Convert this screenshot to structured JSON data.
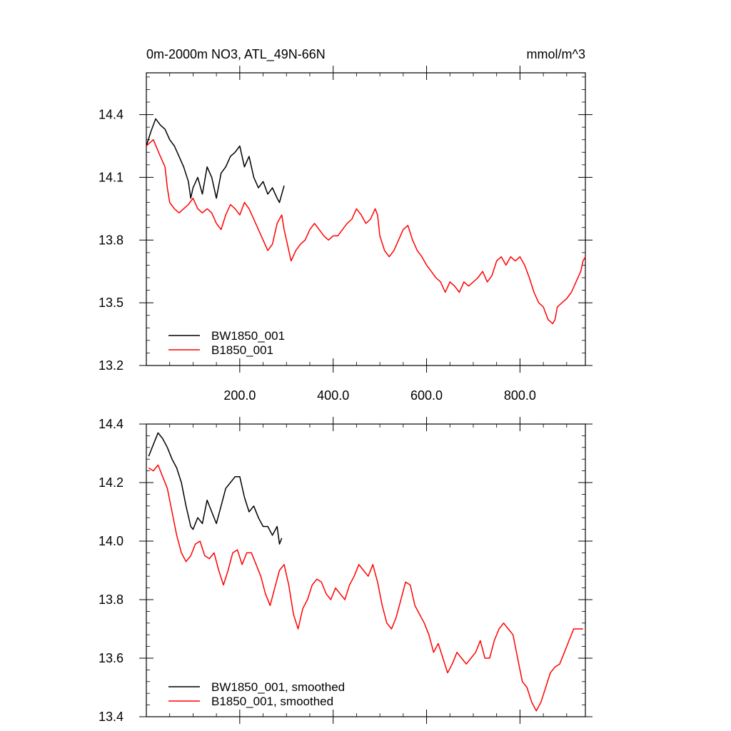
{
  "chart_data": [
    {
      "type": "line",
      "title": "0m-2000m NO3, ATL_49N-66N",
      "units": "mmol/m^3",
      "xlabel": "",
      "ylabel": "",
      "xlim": [
        0,
        940
      ],
      "ylim": [
        13.2,
        14.6
      ],
      "x_ticks": [
        200,
        400,
        600,
        800
      ],
      "x_tick_labels": [
        "200.0",
        "400.0",
        "600.0",
        "800.0"
      ],
      "y_ticks": [
        13.2,
        13.5,
        13.8,
        14.1,
        14.4
      ],
      "y_tick_labels": [
        "13.2",
        "13.5",
        "13.8",
        "14.1",
        "14.4"
      ],
      "legend_position": "bottom-left",
      "series": [
        {
          "name": "BW1850_001",
          "color": "#000000",
          "x": [
            0,
            10,
            20,
            30,
            40,
            50,
            60,
            70,
            80,
            90,
            95,
            100,
            110,
            120,
            130,
            140,
            150,
            160,
            170,
            180,
            190,
            200,
            210,
            220,
            230,
            240,
            250,
            260,
            270,
            280,
            285,
            290,
            295
          ],
          "y": [
            14.25,
            14.32,
            14.38,
            14.35,
            14.33,
            14.28,
            14.25,
            14.2,
            14.15,
            14.08,
            14.0,
            14.05,
            14.1,
            14.02,
            14.15,
            14.1,
            14.0,
            14.12,
            14.15,
            14.2,
            14.22,
            14.25,
            14.15,
            14.2,
            14.1,
            14.05,
            14.08,
            14.02,
            14.05,
            14.0,
            13.98,
            14.02,
            14.06
          ]
        },
        {
          "name": "B1850_001",
          "color": "#ff0000",
          "x": [
            0,
            15,
            30,
            40,
            45,
            50,
            60,
            70,
            80,
            90,
            100,
            110,
            120,
            130,
            140,
            150,
            160,
            170,
            180,
            190,
            200,
            210,
            220,
            230,
            240,
            250,
            260,
            270,
            280,
            290,
            295,
            300,
            310,
            320,
            330,
            340,
            350,
            360,
            370,
            380,
            390,
            400,
            410,
            420,
            430,
            440,
            450,
            460,
            470,
            480,
            490,
            495,
            500,
            510,
            520,
            530,
            540,
            550,
            560,
            570,
            580,
            590,
            600,
            610,
            620,
            630,
            640,
            650,
            660,
            670,
            680,
            690,
            700,
            710,
            720,
            730,
            740,
            750,
            760,
            770,
            780,
            790,
            800,
            810,
            820,
            830,
            840,
            850,
            860,
            870,
            875,
            880,
            890,
            900,
            910,
            920,
            930,
            935,
            940
          ],
          "y": [
            14.25,
            14.28,
            14.2,
            14.15,
            14.05,
            13.98,
            13.95,
            13.93,
            13.95,
            13.97,
            14.0,
            13.95,
            13.93,
            13.95,
            13.93,
            13.88,
            13.85,
            13.92,
            13.97,
            13.95,
            13.92,
            13.98,
            13.95,
            13.9,
            13.85,
            13.8,
            13.75,
            13.78,
            13.88,
            13.92,
            13.85,
            13.8,
            13.7,
            13.75,
            13.78,
            13.8,
            13.85,
            13.88,
            13.85,
            13.82,
            13.8,
            13.82,
            13.82,
            13.85,
            13.88,
            13.9,
            13.95,
            13.92,
            13.88,
            13.9,
            13.95,
            13.92,
            13.82,
            13.75,
            13.72,
            13.75,
            13.8,
            13.85,
            13.87,
            13.8,
            13.75,
            13.72,
            13.68,
            13.65,
            13.62,
            13.6,
            13.55,
            13.6,
            13.58,
            13.55,
            13.6,
            13.58,
            13.6,
            13.62,
            13.65,
            13.6,
            13.63,
            13.7,
            13.72,
            13.68,
            13.72,
            13.7,
            13.72,
            13.68,
            13.62,
            13.55,
            13.5,
            13.48,
            13.42,
            13.4,
            13.42,
            13.48,
            13.5,
            13.52,
            13.55,
            13.6,
            13.65,
            13.7,
            13.72
          ]
        }
      ]
    },
    {
      "type": "line",
      "title": "",
      "xlabel": "",
      "ylabel": "",
      "xlim": [
        0,
        940
      ],
      "ylim": [
        13.4,
        14.4
      ],
      "x_ticks": [
        200,
        400,
        600,
        800
      ],
      "x_tick_labels": [
        "",
        "",
        "",
        ""
      ],
      "y_ticks": [
        13.4,
        13.6,
        13.8,
        14.0,
        14.2,
        14.4
      ],
      "y_tick_labels": [
        "13.4",
        "13.6",
        "13.8",
        "14.0",
        "14.2",
        "14.4"
      ],
      "legend_position": "bottom-left",
      "series": [
        {
          "name": "BW1850_001, smoothed",
          "color": "#000000",
          "x": [
            5,
            15,
            25,
            35,
            45,
            55,
            65,
            75,
            85,
            95,
            100,
            110,
            120,
            130,
            140,
            150,
            160,
            170,
            180,
            190,
            200,
            210,
            220,
            230,
            240,
            250,
            260,
            270,
            280,
            285,
            290
          ],
          "y": [
            14.29,
            14.33,
            14.37,
            14.35,
            14.32,
            14.28,
            14.25,
            14.2,
            14.12,
            14.05,
            14.04,
            14.08,
            14.06,
            14.14,
            14.1,
            14.06,
            14.12,
            14.18,
            14.2,
            14.22,
            14.22,
            14.15,
            14.1,
            14.12,
            14.08,
            14.05,
            14.05,
            14.02,
            14.05,
            13.99,
            14.01
          ]
        },
        {
          "name": "B1850_001, smoothed",
          "color": "#ff0000",
          "x": [
            5,
            15,
            25,
            35,
            45,
            55,
            65,
            75,
            85,
            95,
            105,
            115,
            125,
            135,
            145,
            155,
            165,
            175,
            185,
            195,
            205,
            215,
            225,
            235,
            245,
            255,
            265,
            275,
            285,
            295,
            305,
            315,
            325,
            335,
            345,
            355,
            365,
            375,
            385,
            395,
            405,
            415,
            425,
            435,
            445,
            455,
            465,
            475,
            485,
            495,
            505,
            515,
            525,
            535,
            545,
            555,
            565,
            575,
            585,
            595,
            605,
            615,
            625,
            635,
            645,
            655,
            665,
            675,
            685,
            695,
            705,
            715,
            725,
            735,
            745,
            755,
            765,
            775,
            785,
            795,
            805,
            815,
            825,
            835,
            845,
            855,
            865,
            875,
            885,
            895,
            905,
            915,
            925,
            935
          ],
          "y": [
            14.25,
            14.24,
            14.26,
            14.22,
            14.18,
            14.1,
            14.02,
            13.96,
            13.93,
            13.95,
            13.99,
            14.0,
            13.95,
            13.94,
            13.96,
            13.9,
            13.85,
            13.9,
            13.96,
            13.97,
            13.92,
            13.96,
            13.96,
            13.92,
            13.88,
            13.82,
            13.78,
            13.84,
            13.9,
            13.92,
            13.85,
            13.75,
            13.7,
            13.77,
            13.8,
            13.85,
            13.87,
            13.86,
            13.82,
            13.8,
            13.84,
            13.82,
            13.8,
            13.85,
            13.88,
            13.92,
            13.9,
            13.88,
            13.92,
            13.86,
            13.78,
            13.72,
            13.7,
            13.74,
            13.8,
            13.86,
            13.85,
            13.78,
            13.75,
            13.72,
            13.68,
            13.62,
            13.65,
            13.6,
            13.55,
            13.58,
            13.62,
            13.6,
            13.58,
            13.6,
            13.62,
            13.66,
            13.6,
            13.6,
            13.66,
            13.7,
            13.72,
            13.7,
            13.68,
            13.6,
            13.52,
            13.5,
            13.45,
            13.42,
            13.45,
            13.5,
            13.55,
            13.57,
            13.58,
            13.62,
            13.66,
            13.7,
            13.7,
            13.7
          ]
        }
      ]
    }
  ]
}
